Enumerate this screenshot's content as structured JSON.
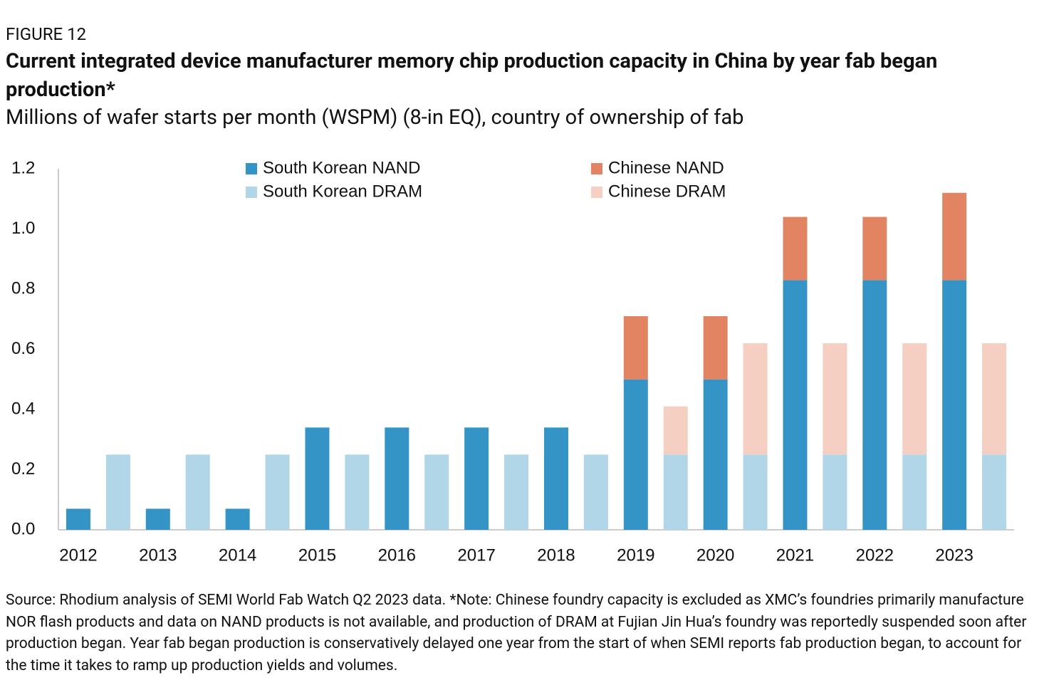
{
  "figure_label": "FIGURE 12",
  "chart_data": {
    "type": "stacked-bar",
    "title": "Current integrated device manufacturer memory chip production capacity in China by year fab began production*",
    "subtitle": "Millions of wafer starts per month (WSPM) (8-in EQ), country of ownership of fab",
    "categories": [
      "2012",
      null,
      "2013",
      null,
      "2014",
      null,
      "2015",
      null,
      "2016",
      null,
      "2017",
      null,
      "2018",
      null,
      "2019",
      null,
      "2020",
      null,
      "2021",
      null,
      "2022",
      null,
      "2023",
      null
    ],
    "series": [
      {
        "name": "South Korean NAND",
        "color": "#3494c6",
        "values": [
          0.07,
          null,
          0.07,
          null,
          0.07,
          null,
          0.34,
          null,
          0.34,
          null,
          0.34,
          null,
          0.34,
          null,
          0.5,
          null,
          0.5,
          null,
          0.83,
          null,
          0.83,
          null,
          0.83,
          null
        ]
      },
      {
        "name": "South Korean DRAM",
        "color": "#b0d6e8",
        "values": [
          null,
          0.25,
          null,
          0.25,
          null,
          0.25,
          null,
          0.25,
          null,
          0.25,
          null,
          0.25,
          null,
          0.25,
          null,
          0.25,
          null,
          0.25,
          null,
          0.25,
          null,
          0.25,
          null,
          0.25
        ]
      },
      {
        "name": "Chinese NAND",
        "color": "#e28462",
        "values": [
          null,
          null,
          null,
          null,
          null,
          null,
          null,
          null,
          null,
          null,
          null,
          null,
          null,
          null,
          0.21,
          null,
          0.21,
          null,
          0.21,
          null,
          0.21,
          null,
          0.29,
          null
        ]
      },
      {
        "name": "Chinese DRAM",
        "color": "#f4cfc2",
        "values": [
          null,
          null,
          null,
          null,
          null,
          null,
          null,
          null,
          null,
          null,
          null,
          null,
          null,
          null,
          null,
          0.16,
          null,
          0.37,
          null,
          0.37,
          null,
          0.37,
          null,
          0.37
        ]
      }
    ],
    "ylim": [
      0,
      1.2
    ],
    "yticks": [
      {
        "value": 0,
        "label": "0.0"
      },
      0.2,
      0.4,
      0.6,
      0.8,
      {
        "value": 1,
        "label": "1.0"
      },
      1.2
    ],
    "grid": false,
    "source": "Source: Rhodium analysis of SEMI World Fab Watch Q2 2023 data. *Note: Chinese foundry capacity is excluded as XMC’s foundries primarily manufacture NOR flash products and data on NAND products is not available, and production of DRAM at Fujian Jin Hua’s foundry was reportedly suspended soon after production began. Year fab began production is conservatively delayed one year from the start of when SEMI reports fab production began, to account for the time it takes to ramp up production yields and volumes."
  }
}
